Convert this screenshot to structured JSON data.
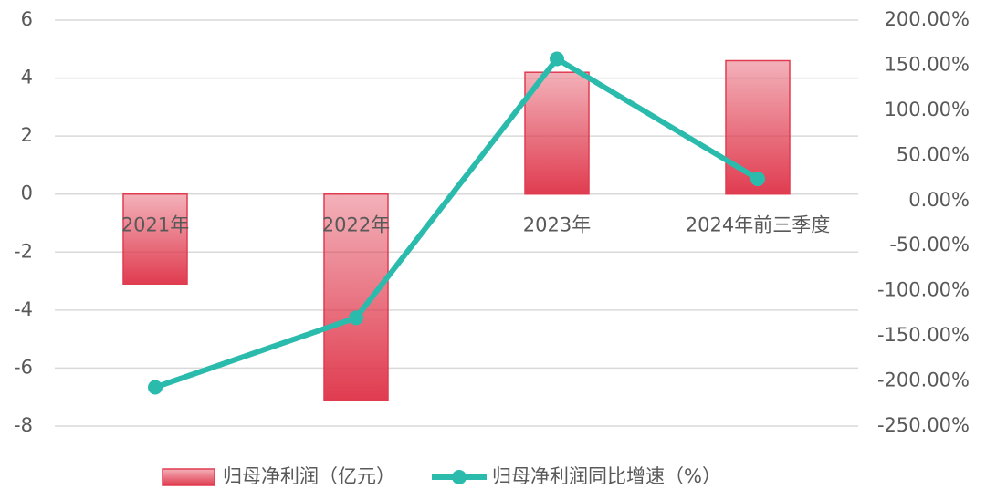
{
  "chart_data": {
    "type": "combo",
    "categories": [
      "2021年",
      "2022年",
      "2023年",
      "2024年前三季度"
    ],
    "series": [
      {
        "name": "归母净利润（亿元）",
        "type": "bar",
        "color": "#e03c50",
        "values": [
          -3.1,
          -7.1,
          4.2,
          4.6
        ]
      },
      {
        "name": "归母净利润同比增速（%）",
        "type": "line",
        "axis": "y2",
        "color": "#2bbbad",
        "values": [
          -207,
          -130,
          157,
          24
        ]
      }
    ],
    "ylim": [
      -8,
      6
    ],
    "yticks": [
      -8,
      -6,
      -4,
      -2,
      0,
      2,
      4,
      6
    ],
    "y2lim": [
      -250,
      200
    ],
    "y2ticks": [
      {
        "value": -250,
        "label": "-250.00%"
      },
      {
        "value": -200,
        "label": "-200.00%"
      },
      {
        "value": -150,
        "label": "-150.00%"
      },
      {
        "value": -100,
        "label": "-100.00%"
      },
      {
        "value": -50,
        "label": "-50.00%"
      },
      {
        "value": 0,
        "label": "0.00%"
      },
      {
        "value": 50,
        "label": "50.00%"
      },
      {
        "value": 100,
        "label": "100.00%"
      },
      {
        "value": 150,
        "label": "150.00%"
      },
      {
        "value": 200,
        "label": "200.00%"
      }
    ],
    "grid": true,
    "legend": "bottom"
  }
}
